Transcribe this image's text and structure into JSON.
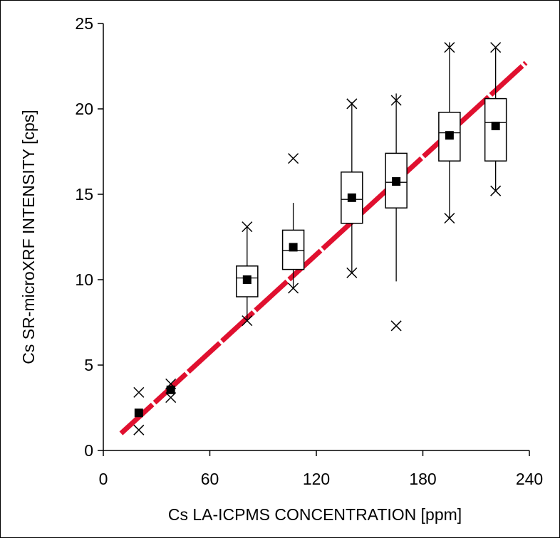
{
  "chart_data": {
    "type": "box",
    "xlabel": "Cs LA-ICPMS CONCENTRATION [ppm]",
    "ylabel": "Cs SR-microXRF INTENSITY [cps]",
    "xlim": [
      0,
      240
    ],
    "ylim": [
      0,
      25
    ],
    "x_ticks": [
      0,
      60,
      120,
      180,
      240
    ],
    "y_ticks": [
      0,
      5,
      10,
      15,
      20,
      25
    ],
    "grid": false,
    "boxes": [
      {
        "x": 20,
        "mean": 2.2,
        "min": 1.2,
        "max": 3.4,
        "extremes": [
          1.2,
          3.4
        ]
      },
      {
        "x": 38,
        "mean": 3.55,
        "min": 3.1,
        "max": 3.9,
        "extremes": [
          3.1,
          3.9
        ]
      },
      {
        "x": 81,
        "mean": 10.0,
        "q1": 9.0,
        "median": 10.1,
        "q3": 10.8,
        "min": 7.6,
        "max": 13.1,
        "extremes": [
          7.6,
          13.1
        ]
      },
      {
        "x": 107,
        "mean": 11.9,
        "q1": 10.6,
        "median": 11.7,
        "q3": 12.9,
        "min": 9.5,
        "max": 14.5,
        "extremes": [
          9.5,
          17.1
        ]
      },
      {
        "x": 140,
        "mean": 14.8,
        "q1": 13.3,
        "median": 14.7,
        "q3": 16.3,
        "min": 10.4,
        "max": 20.4,
        "extremes": [
          10.4,
          20.3
        ]
      },
      {
        "x": 165,
        "mean": 15.75,
        "q1": 14.2,
        "median": 15.7,
        "q3": 17.4,
        "min": 9.9,
        "max": 20.9,
        "extremes": [
          7.3,
          20.5
        ]
      },
      {
        "x": 195,
        "mean": 18.45,
        "q1": 16.95,
        "median": 18.6,
        "q3": 19.8,
        "min": 13.6,
        "max": 23.9,
        "extremes": [
          13.6,
          23.6
        ]
      },
      {
        "x": 221,
        "mean": 19.0,
        "q1": 16.95,
        "median": 19.2,
        "q3": 20.6,
        "min": 15.2,
        "max": 23.6,
        "extremes": [
          15.2,
          23.6
        ]
      }
    ],
    "fit_line": {
      "x": [
        10,
        238
      ],
      "y": [
        1.0,
        22.7
      ],
      "color": "#e0102f"
    }
  }
}
